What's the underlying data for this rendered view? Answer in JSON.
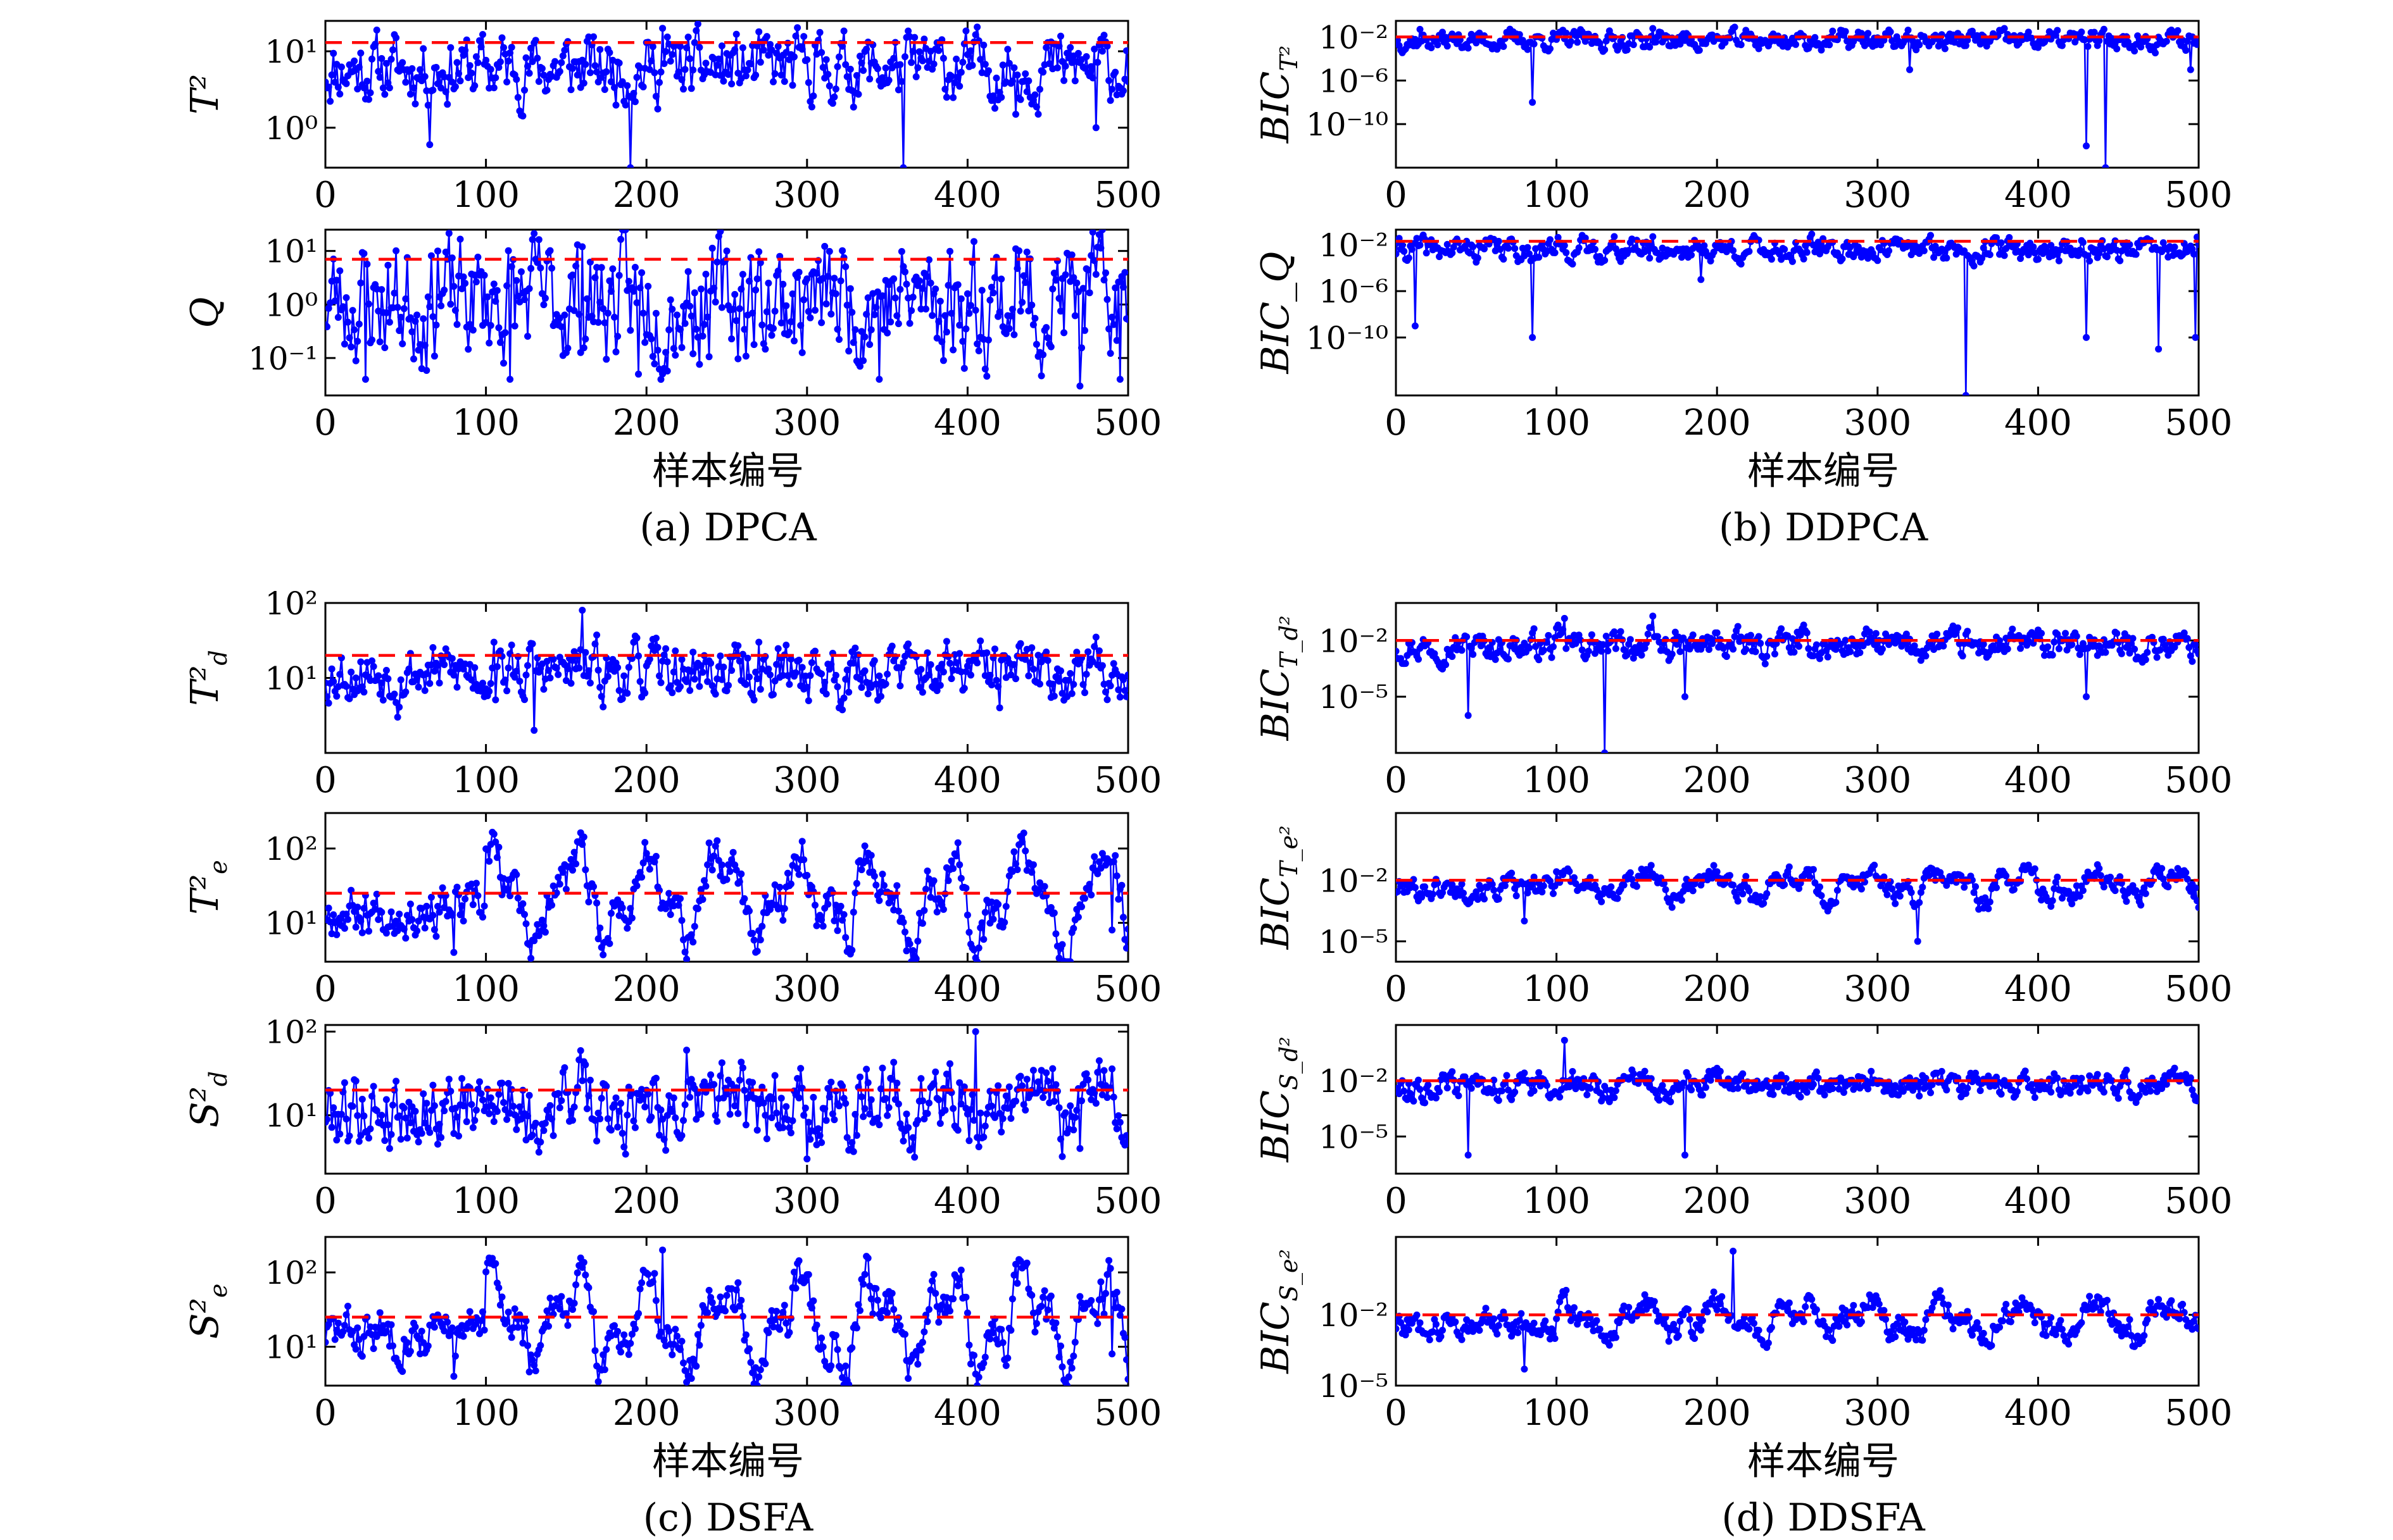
{
  "captions": {
    "a": "(a) DPCA",
    "b": "(b) DDPCA",
    "c": "(c) DSFA",
    "d": "(d) DDSFA"
  },
  "xlabels": {
    "ab": "样本编号",
    "cd": "样本编号"
  },
  "colors": {
    "series": "#0000ff",
    "limit": "#ff0000"
  },
  "chart_data": [
    {
      "type": "line",
      "panel": "a",
      "ylabel": "T²",
      "xlim": [
        0,
        500
      ],
      "yscale": "log",
      "ylim": [
        0.3,
        25
      ],
      "yticks": [
        {
          "value": 1,
          "label": "10⁰"
        },
        {
          "value": 10,
          "label": "10¹"
        }
      ],
      "xticks": [
        0,
        100,
        200,
        300,
        400,
        500
      ],
      "limit": 13,
      "base": 6,
      "spread": 0.35,
      "seed": 11,
      "spikes_down": [
        [
          65,
          0.6
        ],
        [
          190,
          0.3
        ],
        [
          360,
          0.3
        ],
        [
          430,
          1.5
        ],
        [
          480,
          1.0
        ]
      ],
      "spikes_up": [
        [
          110,
          15
        ],
        [
          210,
          20
        ],
        [
          305,
          12
        ]
      ],
      "regimes": []
    },
    {
      "type": "line",
      "panel": "a",
      "ylabel": "Q",
      "xlim": [
        0,
        500
      ],
      "yscale": "log",
      "ylim": [
        0.02,
        25
      ],
      "yticks": [
        {
          "value": 0.1,
          "label": "10⁻¹"
        },
        {
          "value": 1,
          "label": "10⁰"
        },
        {
          "value": 10,
          "label": "10¹"
        }
      ],
      "xticks": [
        0,
        100,
        200,
        300,
        400,
        500
      ],
      "limit": 7,
      "base": 1.2,
      "spread": 0.9,
      "seed": 23,
      "spikes_down": [
        [
          25,
          0.04
        ],
        [
          115,
          0.04
        ],
        [
          195,
          0.05
        ],
        [
          345,
          0.04
        ],
        [
          470,
          0.03
        ],
        [
          495,
          0.04
        ]
      ],
      "spikes_up": [
        [
          70,
          10
        ],
        [
          160,
          12
        ],
        [
          250,
          10
        ],
        [
          430,
          11
        ]
      ],
      "regimes": []
    },
    {
      "type": "line",
      "panel": "b",
      "ylabel": "BIC_{T²}",
      "xlim": [
        0,
        500
      ],
      "yscale": "log",
      "ylim": [
        1e-14,
        0.3
      ],
      "yticks": [
        {
          "value": 1e-10,
          "label": "10⁻¹⁰"
        },
        {
          "value": 1e-06,
          "label": "10⁻⁶"
        },
        {
          "value": 0.01,
          "label": "10⁻²"
        }
      ],
      "xticks": [
        0,
        100,
        200,
        300,
        400,
        500
      ],
      "limit": 0.01,
      "base": 0.005,
      "spread": 0.7,
      "seed": 37,
      "spikes_down": [
        [
          85,
          1e-08
        ],
        [
          320,
          1e-05
        ],
        [
          430,
          1e-12
        ],
        [
          442,
          1e-14
        ],
        [
          495,
          1e-05
        ]
      ],
      "spikes_up": [
        [
          15,
          0.05
        ],
        [
          160,
          0.06
        ]
      ],
      "regimes": []
    },
    {
      "type": "line",
      "panel": "b",
      "ylabel": "BIC_Q",
      "xlim": [
        0,
        500
      ],
      "yscale": "log",
      "ylim": [
        1e-15,
        0.2
      ],
      "yticks": [
        {
          "value": 1e-10,
          "label": "10⁻¹⁰"
        },
        {
          "value": 1e-06,
          "label": "10⁻⁶"
        },
        {
          "value": 0.01,
          "label": "10⁻²"
        }
      ],
      "xticks": [
        0,
        100,
        200,
        300,
        400,
        500
      ],
      "limit": 0.02,
      "base": 0.004,
      "spread": 0.8,
      "seed": 41,
      "spikes_down": [
        [
          12,
          1e-09
        ],
        [
          85,
          1e-10
        ],
        [
          190,
          1e-05
        ],
        [
          355,
          1e-15
        ],
        [
          430,
          1e-10
        ],
        [
          475,
          1e-11
        ],
        [
          498,
          1e-10
        ]
      ],
      "spikes_up": [
        [
          160,
          0.05
        ]
      ],
      "regimes": []
    },
    {
      "type": "line",
      "panel": "c",
      "ylabel": "T_d²",
      "xlim": [
        0,
        500
      ],
      "yscale": "log",
      "ylim": [
        1,
        100
      ],
      "yticks": [
        {
          "value": 10,
          "label": "10¹"
        },
        {
          "value": 100,
          "label": "10²"
        }
      ],
      "xticks": [
        0,
        100,
        200,
        300,
        400,
        500
      ],
      "limit": 20,
      "base": 12,
      "spread": 0.3,
      "seed": 53,
      "spikes_down": [
        [
          45,
          3
        ],
        [
          130,
          2
        ],
        [
          320,
          4
        ],
        [
          420,
          4
        ]
      ],
      "spikes_up": [
        [
          160,
          80
        ],
        [
          105,
          30
        ],
        [
          270,
          30
        ],
        [
          480,
          35
        ]
      ],
      "regimes": []
    },
    {
      "type": "line",
      "panel": "c",
      "ylabel": "T_e²",
      "xlim": [
        0,
        500
      ],
      "yscale": "log",
      "ylim": [
        3,
        300
      ],
      "yticks": [
        {
          "value": 10,
          "label": "10¹"
        },
        {
          "value": 100,
          "label": "10²"
        }
      ],
      "xticks": [
        0,
        100,
        200,
        300,
        400,
        500
      ],
      "limit": 25,
      "base": 15,
      "spread": 0.25,
      "seed": 67,
      "spikes_down": [
        [
          80,
          4
        ],
        [
          410,
          6
        ],
        [
          490,
          8
        ]
      ],
      "spikes_up": [],
      "regimes": [
        [
          100,
          500,
          2.2
        ]
      ]
    },
    {
      "type": "line",
      "panel": "c",
      "ylabel": "S_d²",
      "xlim": [
        0,
        500
      ],
      "yscale": "log",
      "ylim": [
        2,
        120
      ],
      "yticks": [
        {
          "value": 10,
          "label": "10¹"
        },
        {
          "value": 100,
          "label": "10²"
        }
      ],
      "xticks": [
        0,
        100,
        200,
        300,
        400,
        500
      ],
      "limit": 20,
      "base": 12,
      "spread": 0.35,
      "seed": 79,
      "spikes_down": [
        [
          40,
          4
        ],
        [
          300,
          3
        ],
        [
          470,
          4
        ]
      ],
      "spikes_up": [
        [
          405,
          100
        ],
        [
          225,
          60
        ]
      ],
      "regimes": [
        [
          100,
          500,
          1.4
        ]
      ]
    },
    {
      "type": "line",
      "panel": "c",
      "ylabel": "S_e²",
      "xlim": [
        0,
        500
      ],
      "yscale": "log",
      "ylim": [
        3,
        300
      ],
      "yticks": [
        {
          "value": 10,
          "label": "10¹"
        },
        {
          "value": 100,
          "label": "10²"
        }
      ],
      "xticks": [
        0,
        100,
        200,
        300,
        400,
        500
      ],
      "limit": 25,
      "base": 15,
      "spread": 0.25,
      "seed": 83,
      "spikes_down": [
        [
          80,
          4
        ],
        [
          410,
          6
        ],
        [
          490,
          8
        ]
      ],
      "spikes_up": [
        [
          210,
          200
        ]
      ],
      "regimes": [
        [
          100,
          500,
          2.2
        ]
      ]
    },
    {
      "type": "line",
      "panel": "d",
      "ylabel": "BIC_{T_d²}",
      "xlim": [
        0,
        500
      ],
      "yscale": "log",
      "ylim": [
        1e-08,
        1
      ],
      "yticks": [
        {
          "value": 1e-05,
          "label": "10⁻⁵"
        },
        {
          "value": 0.01,
          "label": "10⁻²"
        }
      ],
      "xticks": [
        0,
        100,
        200,
        300,
        400,
        500
      ],
      "limit": 0.01,
      "base": 0.005,
      "spread": 0.6,
      "seed": 97,
      "spikes_down": [
        [
          45,
          1e-06
        ],
        [
          130,
          1e-08
        ],
        [
          180,
          1e-05
        ],
        [
          430,
          1e-05
        ]
      ],
      "spikes_up": [
        [
          105,
          0.15
        ],
        [
          160,
          0.2
        ]
      ],
      "regimes": [
        [
          100,
          500,
          1.2
        ]
      ]
    },
    {
      "type": "line",
      "panel": "d",
      "ylabel": "BIC_{T_e²}",
      "xlim": [
        0,
        500
      ],
      "yscale": "log",
      "ylim": [
        1e-06,
        20
      ],
      "yticks": [
        {
          "value": 1e-05,
          "label": "10⁻⁵"
        },
        {
          "value": 0.01,
          "label": "10⁻²"
        }
      ],
      "xticks": [
        0,
        100,
        200,
        300,
        400,
        500
      ],
      "limit": 0.01,
      "base": 0.004,
      "spread": 0.45,
      "seed": 101,
      "spikes_down": [
        [
          80,
          0.0001
        ],
        [
          325,
          1e-05
        ]
      ],
      "spikes_up": [],
      "regimes": [
        [
          100,
          500,
          2.3
        ]
      ]
    },
    {
      "type": "line",
      "panel": "d",
      "ylabel": "BIC_{S_d²}",
      "xlim": [
        0,
        500
      ],
      "yscale": "log",
      "ylim": [
        1e-07,
        10
      ],
      "yticks": [
        {
          "value": 1e-05,
          "label": "10⁻⁵"
        },
        {
          "value": 0.01,
          "label": "10⁻²"
        }
      ],
      "xticks": [
        0,
        100,
        200,
        300,
        400,
        500
      ],
      "limit": 0.01,
      "base": 0.005,
      "spread": 0.55,
      "seed": 113,
      "spikes_down": [
        [
          45,
          1e-06
        ],
        [
          180,
          1e-06
        ]
      ],
      "spikes_up": [
        [
          105,
          1.5
        ]
      ],
      "regimes": [
        [
          100,
          500,
          1.5
        ]
      ]
    },
    {
      "type": "line",
      "panel": "d",
      "ylabel": "BIC_{S_e²}",
      "xlim": [
        0,
        500
      ],
      "yscale": "log",
      "ylim": [
        1e-05,
        20
      ],
      "yticks": [
        {
          "value": 1e-05,
          "label": "10⁻⁵"
        },
        {
          "value": 0.01,
          "label": "10⁻²"
        }
      ],
      "xticks": [
        0,
        100,
        200,
        300,
        400,
        500
      ],
      "limit": 0.01,
      "base": 0.004,
      "spread": 0.45,
      "seed": 127,
      "spikes_down": [
        [
          80,
          5e-05
        ]
      ],
      "spikes_up": [
        [
          210,
          5
        ]
      ],
      "regimes": [
        [
          100,
          500,
          2.3
        ]
      ]
    }
  ]
}
